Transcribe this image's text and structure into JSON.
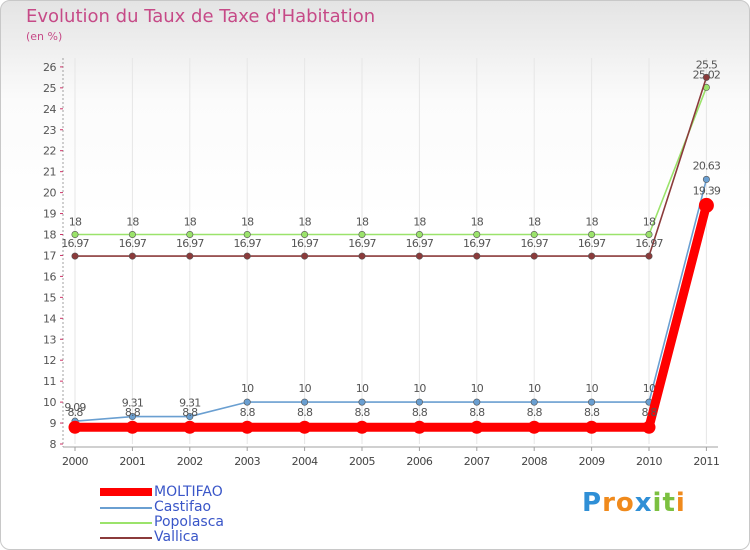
{
  "header": {
    "title": "Evolution du Taux de Taxe d'Habitation",
    "subtitle": "(en %)"
  },
  "chart_data": {
    "type": "line",
    "title": "Evolution du Taux de Taxe d'Habitation",
    "ylabel": "(en %)",
    "xlabel": "",
    "categories": [
      "2000",
      "2001",
      "2002",
      "2003",
      "2004",
      "2005",
      "2006",
      "2007",
      "2008",
      "2009",
      "2010",
      "2011"
    ],
    "ylim": [
      8,
      26
    ],
    "yticks": [
      "8",
      "9",
      "10",
      "11",
      "12",
      "13",
      "14",
      "15",
      "16",
      "17",
      "18",
      "19",
      "20",
      "21",
      "22",
      "23",
      "24",
      "25",
      "26"
    ],
    "series": [
      {
        "name": "MOLTIFAO",
        "color": "#ff0000",
        "values": [
          8.8,
          8.8,
          8.8,
          8.8,
          8.8,
          8.8,
          8.8,
          8.8,
          8.8,
          8.8,
          8.8,
          19.39
        ],
        "labels": [
          "8.8",
          "8.8",
          "8.8",
          "8.8",
          "8.8",
          "8.8",
          "8.8",
          "8.8",
          "8.8",
          "8.8",
          "8.8",
          "19.39"
        ]
      },
      {
        "name": "Castifao",
        "color": "#6a9fd1",
        "values": [
          9.09,
          9.31,
          9.31,
          10,
          10,
          10,
          10,
          10,
          10,
          10,
          10,
          20.63
        ],
        "labels": [
          "9.09",
          "9.31",
          "9.31",
          "10",
          "10",
          "10",
          "10",
          "10",
          "10",
          "10",
          "10",
          "20.63"
        ]
      },
      {
        "name": "Popolasca",
        "color": "#9be36b",
        "values": [
          18,
          18,
          18,
          18,
          18,
          18,
          18,
          18,
          18,
          18,
          18,
          25.02
        ],
        "labels": [
          "18",
          "18",
          "18",
          "18",
          "18",
          "18",
          "18",
          "18",
          "18",
          "18",
          "18",
          "25.02"
        ]
      },
      {
        "name": "Vallica",
        "color": "#8b3b3b",
        "values": [
          16.97,
          16.97,
          16.97,
          16.97,
          16.97,
          16.97,
          16.97,
          16.97,
          16.97,
          16.97,
          16.97,
          25.5
        ],
        "labels": [
          "16.97",
          "16.97",
          "16.97",
          "16.97",
          "16.97",
          "16.97",
          "16.97",
          "16.97",
          "16.97",
          "16.97",
          "16.97",
          "25.5"
        ]
      }
    ],
    "legend": "bottom-left"
  },
  "brand": {
    "letters": [
      "P",
      "r",
      "o",
      "x",
      "i",
      "t",
      "i"
    ],
    "colors": [
      "#2f8fd6",
      "#f08a1c",
      "#f08a1c",
      "#2f8fd6",
      "#7cc040",
      "#7cc040",
      "#f08a1c"
    ]
  }
}
